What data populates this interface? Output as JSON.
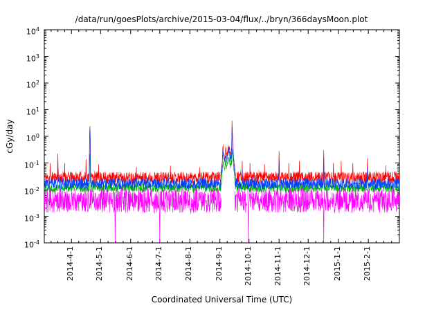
{
  "chart_data": {
    "type": "line",
    "title": "/data/run/goesPlots/archive/2015-03-04/flux/../bryn/366daysMoon.plot",
    "xlabel": "Coordinated Universal Time (UTC)",
    "ylabel": "cGy/day",
    "grid": false,
    "legend": "none",
    "x_axis": {
      "start_date": "2014-03-04",
      "end_date": "2015-03-05",
      "span_days": 366,
      "minor_divisions": 4,
      "ticks": [
        {
          "label": "2014-4-1",
          "day": 28
        },
        {
          "label": "2014-5-1",
          "day": 58
        },
        {
          "label": "2014-6-1",
          "day": 89
        },
        {
          "label": "2014-7-1",
          "day": 119
        },
        {
          "label": "2014-8-1",
          "day": 150
        },
        {
          "label": "2014-9-1",
          "day": 181
        },
        {
          "label": "2014-10-1",
          "day": 211
        },
        {
          "label": "2014-11-1",
          "day": 242
        },
        {
          "label": "2014-12-1",
          "day": 272
        },
        {
          "label": "2015-1-1",
          "day": 303
        },
        {
          "label": "2015-2-1",
          "day": 334
        }
      ]
    },
    "y_axis": {
      "scale": "log",
      "base": 10,
      "min_exp": -4,
      "max_exp": 4,
      "tick_exponents": [
        4,
        3,
        2,
        1,
        0,
        -1,
        -2,
        -3,
        -4
      ]
    },
    "series": [
      {
        "name": "red-flux",
        "color": "#ff0000",
        "seed": 11,
        "base_exp": -1.55,
        "noise_amp": 0.22,
        "spikes": [
          {
            "day": 6,
            "peak": 0.1
          },
          {
            "day": 14,
            "peak": 0.22
          },
          {
            "day": 21,
            "peak": 0.1
          },
          {
            "day": 43,
            "peak": 0.14
          },
          {
            "day": 47,
            "peak": 2.4,
            "width": 0.5
          },
          {
            "day": 56,
            "peak": 0.09
          },
          {
            "day": 95,
            "peak": 0.07
          },
          {
            "day": 130,
            "peak": 0.08
          },
          {
            "day": 160,
            "peak": 0.07
          },
          {
            "day": 204,
            "peak": 0.12
          },
          {
            "day": 212,
            "peak": 0.1
          },
          {
            "day": 227,
            "peak": 0.09
          },
          {
            "day": 242,
            "peak": 0.28
          },
          {
            "day": 252,
            "peak": 0.1
          },
          {
            "day": 263,
            "peak": 0.12
          },
          {
            "day": 288,
            "peak": 0.3
          },
          {
            "day": 298,
            "peak": 0.1
          },
          {
            "day": 306,
            "peak": 0.12
          },
          {
            "day": 318,
            "peak": 0.1
          },
          {
            "day": 333,
            "peak": 0.15
          },
          {
            "day": 352,
            "peak": 0.08
          }
        ],
        "event_shape": [
          [
            182,
            0.04
          ],
          [
            183.2,
            0.09
          ],
          [
            184.2,
            0.4
          ],
          [
            185,
            0.22
          ],
          [
            186,
            0.14
          ],
          [
            187,
            0.3
          ],
          [
            188,
            0.18
          ],
          [
            189,
            0.25
          ],
          [
            190,
            0.45
          ],
          [
            191,
            0.28
          ],
          [
            192,
            0.2
          ],
          [
            193,
            0.3
          ],
          [
            193.5,
            3.8
          ],
          [
            194,
            1.2
          ],
          [
            194.4,
            0.45
          ],
          [
            195,
            0.22
          ],
          [
            195.8,
            0.1
          ],
          [
            196.5,
            0.05
          ],
          [
            197,
            0.04
          ]
        ]
      },
      {
        "name": "green-flux",
        "color": "#00b400",
        "seed": 22,
        "base_exp": -1.93,
        "noise_amp": 0.17,
        "spikes": [
          {
            "day": 47,
            "peak": 0.22,
            "width": 0.5
          },
          {
            "day": 288,
            "peak": 0.06
          }
        ],
        "event_shape": [
          [
            182,
            0.013
          ],
          [
            183.2,
            0.03
          ],
          [
            184.2,
            0.12
          ],
          [
            185,
            0.08
          ],
          [
            186,
            0.06
          ],
          [
            187,
            0.1
          ],
          [
            188,
            0.07
          ],
          [
            189,
            0.09
          ],
          [
            190,
            0.14
          ],
          [
            191,
            0.1
          ],
          [
            192,
            0.08
          ],
          [
            193,
            0.1
          ],
          [
            193.5,
            0.35
          ],
          [
            194,
            0.2
          ],
          [
            194.4,
            0.13
          ],
          [
            195,
            0.08
          ],
          [
            195.8,
            0.04
          ],
          [
            196.5,
            0.018
          ],
          [
            197,
            0.013
          ]
        ]
      },
      {
        "name": "blue-flux",
        "color": "#0040ff",
        "seed": 33,
        "base_exp": -1.78,
        "noise_amp": 0.2,
        "spikes": [
          {
            "day": 14,
            "peak": 0.1
          },
          {
            "day": 47,
            "peak": 2.0,
            "width": 0.5
          },
          {
            "day": 204,
            "peak": 0.06
          },
          {
            "day": 242,
            "peak": 0.13
          },
          {
            "day": 288,
            "peak": 0.17
          },
          {
            "day": 333,
            "peak": 0.07
          }
        ],
        "event_shape": [
          [
            182,
            0.025
          ],
          [
            183.2,
            0.06
          ],
          [
            184.2,
            0.28
          ],
          [
            185,
            0.15
          ],
          [
            186,
            0.1
          ],
          [
            187,
            0.2
          ],
          [
            188,
            0.12
          ],
          [
            189,
            0.17
          ],
          [
            190,
            0.3
          ],
          [
            191,
            0.19
          ],
          [
            192,
            0.14
          ],
          [
            193,
            0.2
          ],
          [
            193.5,
            2.6
          ],
          [
            194,
            0.8
          ],
          [
            194.4,
            0.3
          ],
          [
            195,
            0.15
          ],
          [
            195.8,
            0.07
          ],
          [
            196.5,
            0.035
          ],
          [
            197,
            0.025
          ]
        ]
      },
      {
        "name": "magenta-flux",
        "color": "#ff00ff",
        "seed": 44,
        "base_exp": -2.42,
        "noise_amp": 0.45,
        "gaps": [
          [
            182.5,
            196.2
          ],
          [
            208.8,
            209.6
          ]
        ],
        "down_spikes": [
          {
            "day": 73
          },
          {
            "day": 119
          },
          {
            "day": 210.5
          },
          {
            "day": 288
          }
        ]
      }
    ]
  }
}
